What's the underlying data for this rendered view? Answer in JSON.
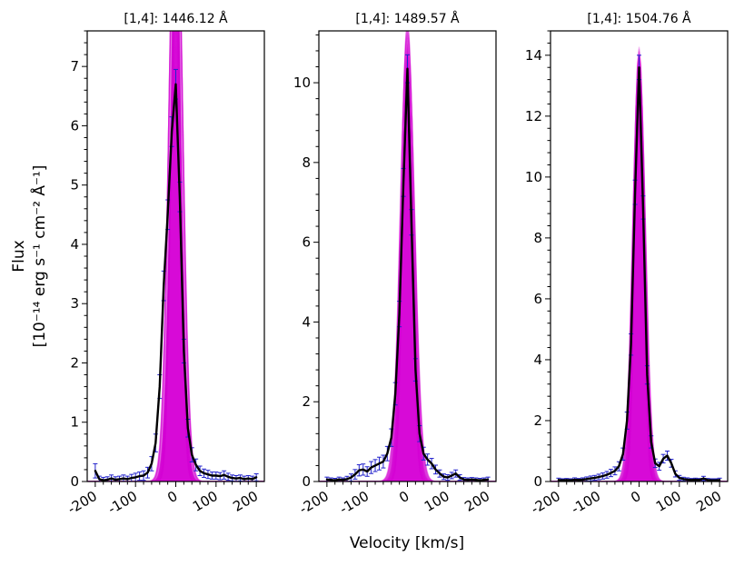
{
  "chart_data": {
    "type": "line",
    "xlabel": "Velocity [km/s]",
    "ylabel_line1": "Flux",
    "ylabel_line2": "[10⁻¹⁴ erg s⁻¹ cm⁻² Å⁻¹]",
    "xlim": [
      -220,
      220
    ],
    "xticks": [
      -200,
      -100,
      0,
      100,
      200
    ],
    "x_minor_step": 20,
    "colors": {
      "data_line": "#000000",
      "model_band": "#d400d4",
      "errorbar": "#2222cc",
      "axis": "#000000",
      "background": "#ffffff"
    },
    "x": [
      -200,
      -190,
      -180,
      -170,
      -160,
      -150,
      -140,
      -130,
      -120,
      -110,
      -100,
      -90,
      -80,
      -70,
      -60,
      -50,
      -40,
      -30,
      -20,
      -10,
      0,
      10,
      20,
      30,
      40,
      50,
      60,
      70,
      80,
      90,
      100,
      110,
      120,
      130,
      140,
      150,
      160,
      170,
      180,
      190,
      200
    ],
    "panels": [
      {
        "title": "[1,4]: 1446.12 Å",
        "ylim": [
          0,
          7.6
        ],
        "yticks": [
          0,
          1,
          2,
          3,
          4,
          5,
          6,
          7
        ],
        "flux": [
          0.18,
          0.04,
          0.02,
          0.03,
          0.05,
          0.03,
          0.04,
          0.05,
          0.04,
          0.06,
          0.07,
          0.09,
          0.1,
          0.15,
          0.3,
          0.65,
          1.6,
          3.3,
          4.5,
          5.9,
          6.7,
          4.8,
          2.2,
          0.9,
          0.45,
          0.28,
          0.18,
          0.14,
          0.12,
          0.1,
          0.1,
          0.09,
          0.11,
          0.08,
          0.06,
          0.05,
          0.06,
          0.04,
          0.05,
          0.04,
          0.07
        ],
        "err": [
          0.12,
          0.05,
          0.05,
          0.05,
          0.06,
          0.05,
          0.05,
          0.06,
          0.05,
          0.06,
          0.07,
          0.07,
          0.08,
          0.09,
          0.12,
          0.15,
          0.2,
          0.25,
          0.25,
          0.25,
          0.25,
          0.25,
          0.2,
          0.15,
          0.12,
          0.1,
          0.08,
          0.07,
          0.07,
          0.06,
          0.06,
          0.06,
          0.07,
          0.06,
          0.05,
          0.05,
          0.05,
          0.05,
          0.05,
          0.05,
          0.06
        ],
        "model": {
          "center": 0,
          "amp_min": 6.8,
          "amp_max": 11.5,
          "sigma_min": 11,
          "sigma_max": 17,
          "n_draws": 36
        }
      },
      {
        "title": "[1,4]: 1489.57 Å",
        "ylim": [
          0,
          11.3
        ],
        "yticks": [
          0,
          2,
          4,
          6,
          8,
          10
        ],
        "flux": [
          0.05,
          0.04,
          0.03,
          0.05,
          0.04,
          0.06,
          0.1,
          0.18,
          0.28,
          0.3,
          0.25,
          0.35,
          0.4,
          0.45,
          0.5,
          0.7,
          1.1,
          2.2,
          4.2,
          7.5,
          10.35,
          6.5,
          2.8,
          1.2,
          0.7,
          0.55,
          0.45,
          0.3,
          0.2,
          0.12,
          0.1,
          0.15,
          0.2,
          0.1,
          0.05,
          0.04,
          0.05,
          0.04,
          0.03,
          0.04,
          0.05
        ],
        "err": [
          0.06,
          0.05,
          0.05,
          0.06,
          0.05,
          0.07,
          0.09,
          0.12,
          0.14,
          0.14,
          0.12,
          0.15,
          0.15,
          0.16,
          0.16,
          0.18,
          0.22,
          0.28,
          0.32,
          0.35,
          0.35,
          0.32,
          0.28,
          0.2,
          0.16,
          0.14,
          0.13,
          0.11,
          0.09,
          0.07,
          0.07,
          0.08,
          0.09,
          0.07,
          0.05,
          0.05,
          0.05,
          0.05,
          0.05,
          0.05,
          0.06
        ],
        "model": {
          "center": 0,
          "amp_min": 9.8,
          "amp_max": 11.6,
          "sigma_min": 11,
          "sigma_max": 18,
          "n_draws": 36
        }
      },
      {
        "title": "[1,4]: 1504.76 Å",
        "ylim": [
          0,
          14.8
        ],
        "yticks": [
          0,
          2,
          4,
          6,
          8,
          10,
          12,
          14
        ],
        "flux": [
          0.05,
          0.04,
          0.05,
          0.04,
          0.06,
          0.05,
          0.06,
          0.08,
          0.1,
          0.12,
          0.15,
          0.18,
          0.22,
          0.28,
          0.35,
          0.5,
          0.9,
          2.0,
          4.5,
          9.5,
          13.6,
          9.0,
          3.5,
          1.3,
          0.6,
          0.5,
          0.75,
          0.85,
          0.6,
          0.25,
          0.12,
          0.08,
          0.06,
          0.05,
          0.06,
          0.05,
          0.1,
          0.05,
          0.04,
          0.04,
          0.05
        ],
        "err": [
          0.06,
          0.05,
          0.05,
          0.05,
          0.06,
          0.05,
          0.06,
          0.07,
          0.08,
          0.08,
          0.09,
          0.1,
          0.11,
          0.12,
          0.13,
          0.15,
          0.2,
          0.28,
          0.35,
          0.4,
          0.4,
          0.38,
          0.3,
          0.2,
          0.14,
          0.13,
          0.14,
          0.15,
          0.13,
          0.1,
          0.08,
          0.06,
          0.06,
          0.05,
          0.05,
          0.05,
          0.07,
          0.05,
          0.05,
          0.05,
          0.06
        ],
        "model": {
          "center": 0,
          "amp_min": 12.8,
          "amp_max": 14.3,
          "sigma_min": 10,
          "sigma_max": 16,
          "n_draws": 36
        }
      }
    ]
  }
}
